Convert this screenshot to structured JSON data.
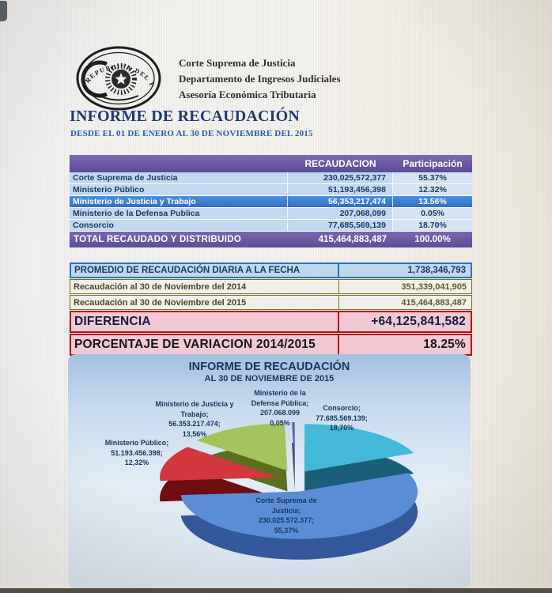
{
  "header": {
    "seal_text": "REPUBLICA DEL PARAGUAY",
    "org_lines": [
      "Corte Suprema de Justicia",
      "Departamento de Ingresos Judiciales",
      "Asesoría Económica Tributaria"
    ]
  },
  "report": {
    "title": "INFORME DE RECAUDACIÓN",
    "subtitle": "DESDE EL 01 DE ENERO AL 30 DE NOVIEMBRE DEL 2015"
  },
  "collection_table": {
    "col_amount": "RECAUDACION",
    "col_share": "Participación",
    "rows": [
      {
        "label": "Corte Suprema de Justicia",
        "amount": "230,025,572,377",
        "share": "55.37%"
      },
      {
        "label": "Ministerio Público",
        "amount": "51,193,456,398",
        "share": "12.32%"
      },
      {
        "label": "Ministerio de Justicia y Trabajo",
        "amount": "56,353,217,474",
        "share": "13.56%"
      },
      {
        "label": "Ministerio de la Defensa Publica",
        "amount": "207,068,099",
        "share": "0.05%"
      },
      {
        "label": "Consorcio",
        "amount": "77,685,569,139",
        "share": "18.70%"
      }
    ],
    "total": {
      "label": "TOTAL RECAUDADO Y DISTRIBUIDO",
      "amount": "415,464,883,487",
      "share": "100.00%"
    }
  },
  "summary_table": {
    "rows": [
      {
        "label": "PROMEDIO DE RECAUDACIÓN DIARIA A LA FECHA",
        "value": "1,738,346,793"
      },
      {
        "label": "Recaudación al 30 de Noviembre del 2014",
        "value": "351,339,041,905"
      },
      {
        "label": "Recaudación al 30 de Noviembre del 2015",
        "value": "415,464,883,487"
      },
      {
        "label": "DIFERENCIA",
        "value": "+64,125,841,582"
      },
      {
        "label": "PORCENTAJE DE VARIACION 2014/2015",
        "value": "18.25%"
      }
    ]
  },
  "chart_data": {
    "type": "pie",
    "style": "3d-exploded",
    "title": "INFORME DE RECAUDACIÓN",
    "subtitle": "AL 30 DE NOVIEMBRE DE 2015",
    "start_angle_deg": 0,
    "clockwise": true,
    "legend_position": "data-labels",
    "slices": [
      {
        "name": "Consorcio",
        "value": 77685569139,
        "pct": 18.7,
        "color": "#44b8d8",
        "side_color": "#1b5e78",
        "label_lines": [
          "Consorcio;",
          "77.685.569.139;",
          "18,70%"
        ]
      },
      {
        "name": "Corte Suprema de Justicia",
        "value": 230025572377,
        "pct": 55.37,
        "color": "#5b8dd6",
        "side_color": "#33589c",
        "label_lines": [
          "Corte Suprema de",
          "Justicia;",
          "230.025.572.377;",
          "55,37%"
        ]
      },
      {
        "name": "Ministerio Público",
        "value": 51193456398,
        "pct": 12.32,
        "color": "#d2383e",
        "side_color": "#6e0d12",
        "label_lines": [
          "Ministerio Público;",
          "51.193.456.398;",
          "12,32%"
        ]
      },
      {
        "name": "Ministerio de Justicia y Trabajo",
        "value": 56353217474,
        "pct": 13.56,
        "color": "#a3c45e",
        "side_color": "#5c6e1f",
        "label_lines": [
          "Ministerio de Justicia y",
          "Trabajo;",
          "56.353.217.474;",
          "13,56%"
        ]
      },
      {
        "name": "Ministerio de la Defensa Pública",
        "value": 207068099,
        "pct": 0.05,
        "color": "#6f5aa8",
        "side_color": "#4a3a6a",
        "label_lines": [
          "Ministerio de la",
          "Defensa Pública;",
          "207.068.099",
          "0,05%"
        ]
      }
    ]
  }
}
